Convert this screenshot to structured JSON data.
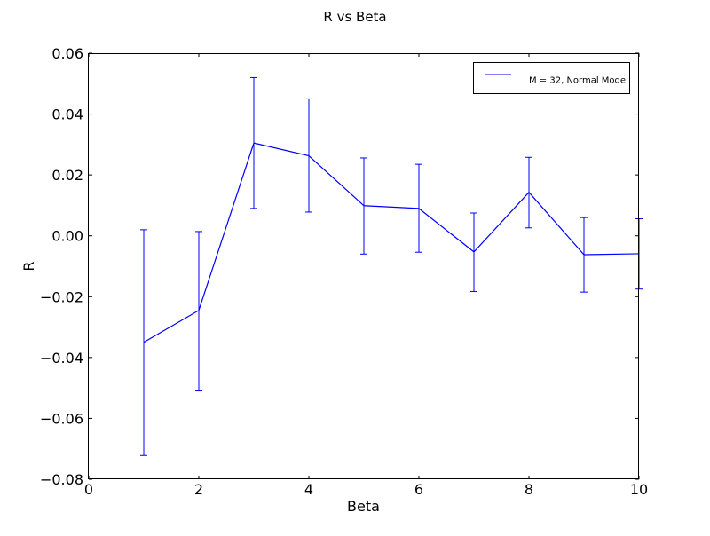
{
  "chart_data": {
    "type": "line",
    "title": "R vs Beta",
    "xlabel": "Beta",
    "ylabel": "R",
    "xlim": [
      0,
      10
    ],
    "ylim": [
      -0.08,
      0.06
    ],
    "x_ticks": [
      "0",
      "2",
      "4",
      "6",
      "8",
      "10"
    ],
    "x_tick_values": [
      0,
      2,
      4,
      6,
      8,
      10
    ],
    "y_ticks": [
      "0.06",
      "0.04",
      "0.02",
      "0.00",
      "−0.02",
      "−0.04",
      "−0.06",
      "−0.08"
    ],
    "y_tick_values": [
      0.06,
      0.04,
      0.02,
      0.0,
      -0.02,
      -0.04,
      -0.06,
      -0.08
    ],
    "grid": false,
    "legend_position": "top-right",
    "series": [
      {
        "name": "M = 32, Normal Mode",
        "color": "#0000ff",
        "x": [
          1,
          2,
          3,
          4,
          5,
          6,
          7,
          8,
          9,
          10
        ],
        "y": [
          -0.035,
          -0.0245,
          0.0305,
          0.0263,
          0.0099,
          0.009,
          -0.0053,
          0.0143,
          -0.0062,
          -0.0059
        ],
        "err_low": [
          -0.0722,
          -0.051,
          0.009,
          0.0078,
          -0.006,
          -0.0054,
          -0.0183,
          0.0026,
          -0.0185,
          -0.0175
        ],
        "err_high": [
          0.002,
          0.0014,
          0.052,
          0.045,
          0.0256,
          0.0235,
          0.0075,
          0.0258,
          0.006,
          0.0056
        ]
      }
    ]
  }
}
